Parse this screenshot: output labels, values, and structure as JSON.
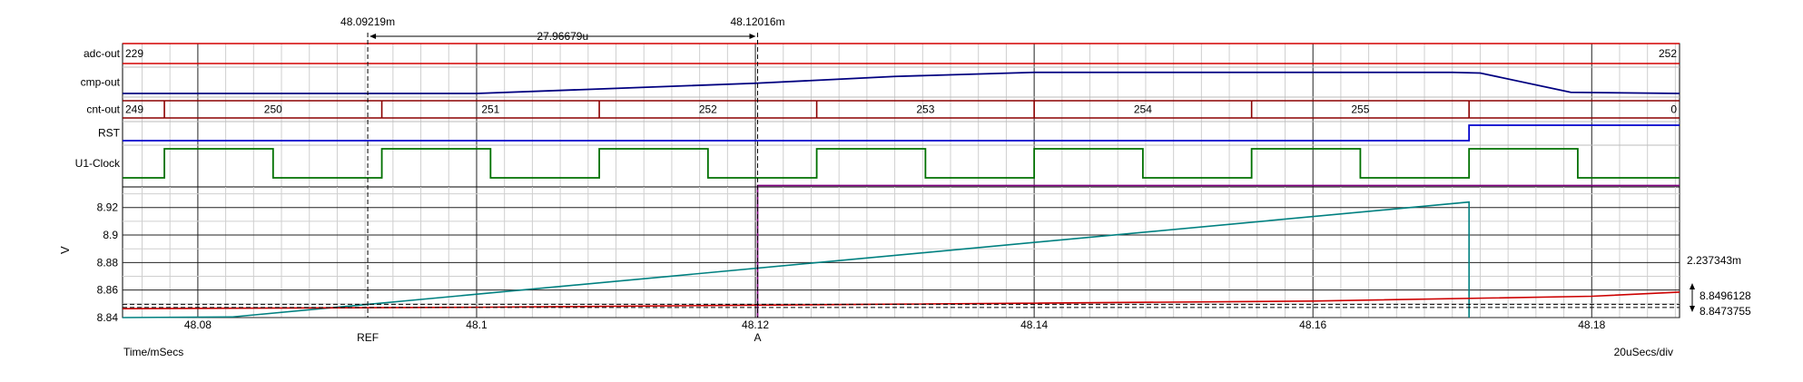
{
  "chart_data": [
    {
      "type": "line",
      "subtype": "digital-waveforms",
      "x_unit": "Time/mSecs",
      "xlim": [
        48.0746,
        48.1863
      ],
      "traces": [
        {
          "name": "adc-out",
          "kind": "bus",
          "color": "#d40000",
          "segments": [
            {
              "t0": 48.0746,
              "t1": 48.1863,
              "label": "229",
              "end_label": "252"
            }
          ]
        },
        {
          "name": "cmp-out",
          "kind": "analog",
          "color": "#000080",
          "x": [
            48.0746,
            48.1,
            48.12,
            48.13,
            48.14,
            48.17,
            48.172,
            48.1785,
            48.1863
          ],
          "y": [
            0.0,
            0.0,
            0.45,
            0.75,
            0.93,
            0.93,
            0.9,
            0.05,
            0.0
          ]
        },
        {
          "name": "cnt-out",
          "kind": "bus",
          "color": "#8b0000",
          "segments": [
            {
              "t0": 48.0746,
              "t1": 48.0776,
              "label": "249"
            },
            {
              "t0": 48.0776,
              "t1": 48.0932,
              "label": "250"
            },
            {
              "t0": 48.0932,
              "t1": 48.1088,
              "label": "251"
            },
            {
              "t0": 48.1088,
              "t1": 48.1244,
              "label": "252"
            },
            {
              "t0": 48.1244,
              "t1": 48.14,
              "label": "253"
            },
            {
              "t0": 48.14,
              "t1": 48.1556,
              "label": "254"
            },
            {
              "t0": 48.1556,
              "t1": 48.1712,
              "label": "255"
            },
            {
              "t0": 48.1712,
              "t1": 48.1863,
              "label": "0"
            }
          ]
        },
        {
          "name": "RST",
          "kind": "digital",
          "color": "#0000cc",
          "x": [
            48.0746,
            48.1712,
            48.1712,
            48.1863
          ],
          "y": [
            0,
            0,
            1,
            1
          ]
        },
        {
          "name": "U1-Clock",
          "kind": "digital",
          "color": "#007000",
          "x": [
            48.0746,
            48.0776,
            48.0776,
            48.0854,
            48.0854,
            48.0932,
            48.0932,
            48.101,
            48.101,
            48.1088,
            48.1088,
            48.1166,
            48.1166,
            48.1244,
            48.1244,
            48.1322,
            48.1322,
            48.14,
            48.14,
            48.1478,
            48.1478,
            48.1556,
            48.1556,
            48.1634,
            48.1634,
            48.1712,
            48.1712,
            48.179,
            48.179,
            48.1863
          ],
          "y": [
            0,
            0,
            1,
            1,
            0,
            0,
            1,
            1,
            0,
            0,
            1,
            1,
            0,
            0,
            1,
            1,
            0,
            0,
            1,
            1,
            0,
            0,
            1,
            1,
            0,
            0,
            1,
            1,
            0,
            0
          ]
        }
      ]
    },
    {
      "type": "line",
      "xlabel": "Time/mSecs",
      "ylabel": "V",
      "xlim": [
        48.0746,
        48.1863
      ],
      "ylim": [
        8.84,
        8.935
      ],
      "y_ticks": [
        "8.84",
        "8.86",
        "8.88",
        "8.9",
        "8.92"
      ],
      "x_ticks": [
        "48.08",
        "48.1",
        "48.12",
        "48.14",
        "48.16",
        "48.18"
      ],
      "grid": true,
      "series": [
        {
          "color": "#008080",
          "x": [
            48.0746,
            48.0825,
            48.1712,
            48.1712
          ],
          "y": [
            8.835,
            8.8405,
            8.924,
            8.84
          ]
        },
        {
          "color": "#cc0000",
          "x": [
            48.0746,
            48.1,
            48.12,
            48.16,
            48.18,
            48.1863
          ],
          "y": [
            8.8465,
            8.8475,
            8.849,
            8.852,
            8.8555,
            8.8585
          ]
        },
        {
          "color": "#800080",
          "x": [
            48.12016,
            48.12016,
            48.1863
          ],
          "y": [
            8.84,
            8.936,
            8.936
          ]
        }
      ],
      "cursors": [
        {
          "label": "REF",
          "x": 48.09219,
          "readout": "48.09219m",
          "y_level": 8.8496128
        },
        {
          "label": "A",
          "x": 48.12016,
          "readout": "48.12016m",
          "y_level": 8.8473755
        }
      ],
      "delta_x": "27.96679u",
      "delta_y": "2.237343m",
      "y_readouts": [
        "8.8496128",
        "8.8473755"
      ],
      "time_scale": "20uSecs/div"
    }
  ]
}
